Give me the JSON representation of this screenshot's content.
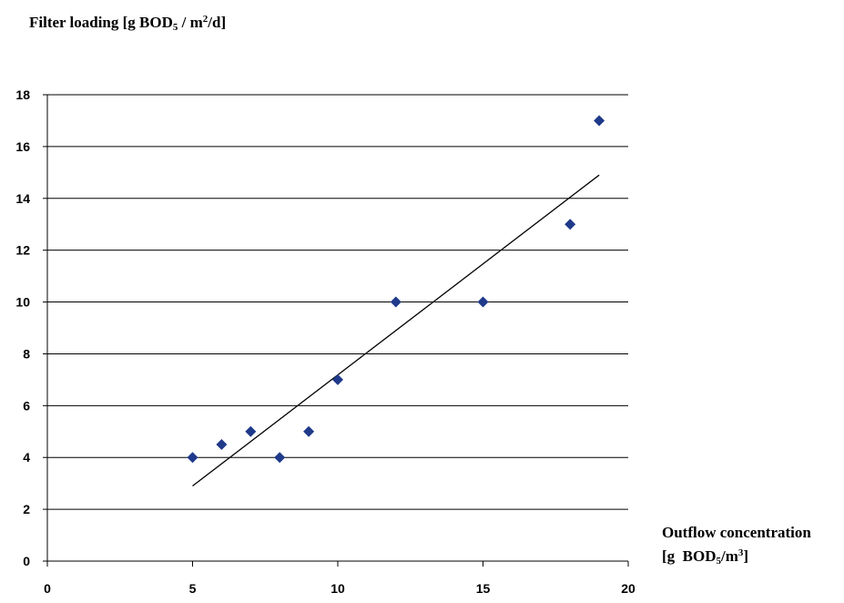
{
  "chart_data": {
    "type": "scatter",
    "title": "",
    "ylabel": {
      "prefix": "Filter loading [g BOD",
      "sub": "5",
      "middle": " / m",
      "sup": "2",
      "suffix": "/d]"
    },
    "xlabel": {
      "line1": "Outflow concentration",
      "line2_prefix": "[g  BOD",
      "line2_sub": "5",
      "line2_middle": "/m",
      "line2_sup": "3",
      "line2_suffix": "]"
    },
    "xlim": [
      0,
      20
    ],
    "ylim": [
      0,
      18
    ],
    "x_ticks": [
      "0",
      "5",
      "10",
      "15",
      "20"
    ],
    "y_ticks": [
      "0",
      "2",
      "4",
      "6",
      "8",
      "10",
      "12",
      "14",
      "16",
      "18"
    ],
    "grid": "horizontal",
    "marker": "diamond",
    "marker_color": "#1f3a8a",
    "series": [
      {
        "x": [
          5,
          6,
          7,
          8,
          9,
          10,
          12,
          15,
          18,
          19
        ],
        "y": [
          4,
          4.5,
          5,
          4,
          5,
          7,
          10,
          10,
          13,
          17
        ]
      }
    ],
    "trendline": {
      "type": "linear",
      "x": [
        5,
        19
      ],
      "y": [
        2.9,
        14.9
      ]
    }
  }
}
